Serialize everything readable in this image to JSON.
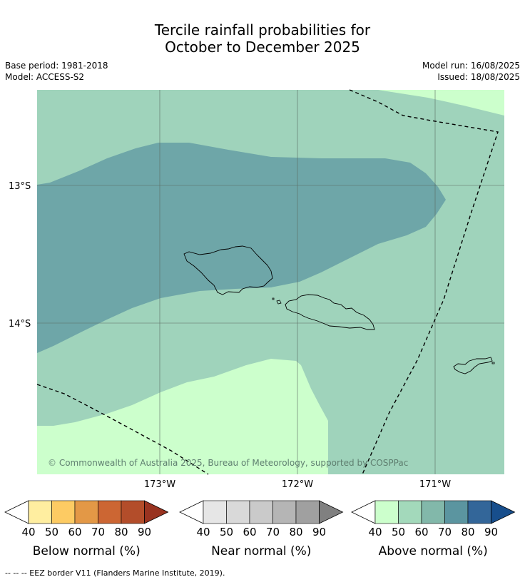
{
  "title_line1": "Tercile rainfall probabilities for",
  "title_line2": "October to December 2025",
  "base_period": "Base period: 1981-2018",
  "model": "Model: ACCESS-S2",
  "model_run": "Model run: 16/08/2025",
  "issued": "Issued: 18/08/2025",
  "map": {
    "lat_labels": [
      "13°S",
      "14°S"
    ],
    "lon_labels": [
      "173°W",
      "172°W",
      "171°W"
    ],
    "copyright": "© Commonwealth of Australia 2025, Bureau of Meteorology, supported by COSPPac",
    "colors": {
      "above_50_60": "#9fd3bb",
      "above_70_80": "#6ea6a8",
      "above_40_50": "#ccffcc",
      "grid": "#5a6a62",
      "coast": "#000000"
    }
  },
  "colorbars": [
    {
      "name": "Below normal (%)",
      "ticks": [
        "40",
        "50",
        "60",
        "70",
        "80",
        "90"
      ],
      "colors": [
        "#ffeea0",
        "#fdcb63",
        "#e39846",
        "#cc6633",
        "#b34d2a",
        "#993320"
      ]
    },
    {
      "name": "Near normal (%)",
      "ticks": [
        "40",
        "50",
        "60",
        "70",
        "80",
        "90"
      ],
      "colors": [
        "#e6e6e6",
        "#d9d9d9",
        "#cacaca",
        "#b5b5b5",
        "#a0a0a0",
        "#808080"
      ]
    },
    {
      "name": "Above normal (%)",
      "ticks": [
        "40",
        "50",
        "60",
        "70",
        "80",
        "90"
      ],
      "colors": [
        "#ccffcc",
        "#a3d9bb",
        "#82b8aa",
        "#5b95a0",
        "#336699",
        "#174e8c"
      ]
    }
  ],
  "footnote": "--  --  -- EEZ border V11 (Flanders Marine Institute, 2019)."
}
